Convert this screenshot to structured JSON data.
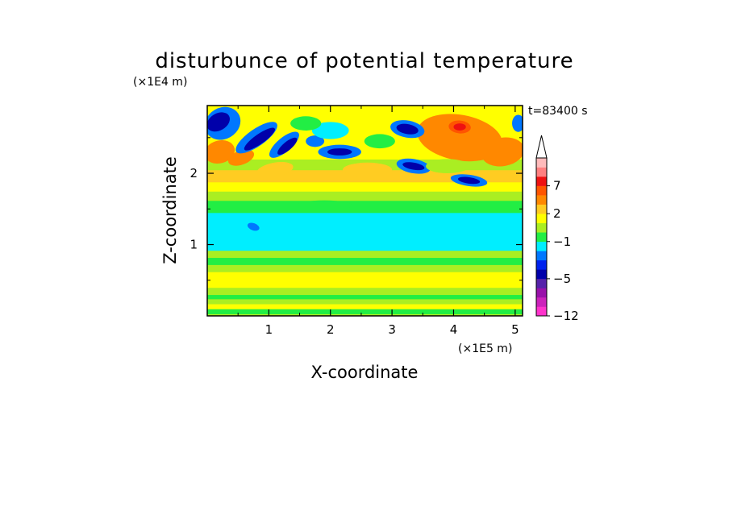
{
  "chart_data": {
    "type": "heatmap",
    "title": "disturbunce of potential temperature",
    "xlabel": "X-coordinate",
    "ylabel": "Z-coordinate",
    "x_unit": "(×1E5 m)",
    "y_unit": "(×1E4 m)",
    "time_label": "t=83400 s",
    "xlim": [
      0,
      5.12
    ],
    "ylim": [
      0,
      2.95
    ],
    "x_ticks": [
      1,
      2,
      3,
      4,
      5
    ],
    "x_tick_labels": [
      "1",
      "2",
      "3",
      "4",
      "5"
    ],
    "y_ticks": [
      1,
      2
    ],
    "y_tick_labels": [
      "1",
      "2"
    ],
    "colorbar": {
      "ticks": [
        -12,
        -5,
        -1,
        2,
        7
      ],
      "tick_labels": [
        "−12",
        "−5",
        "−1",
        "2",
        "7"
      ],
      "arrow_top": true,
      "levels": [
        {
          "from": -12,
          "to": -10,
          "color": "#ff33cc"
        },
        {
          "from": -10,
          "to": -8,
          "color": "#cc22bb"
        },
        {
          "from": -8,
          "to": -7,
          "color": "#9911aa"
        },
        {
          "from": -7,
          "to": -5,
          "color": "#5522aa"
        },
        {
          "from": -5,
          "to": -4,
          "color": "#0000aa"
        },
        {
          "from": -4,
          "to": -3,
          "color": "#0022ee"
        },
        {
          "from": -3,
          "to": -2,
          "color": "#0077ff"
        },
        {
          "from": -2,
          "to": -1,
          "color": "#00eeff"
        },
        {
          "from": -1,
          "to": 0,
          "color": "#22ee44"
        },
        {
          "from": 0,
          "to": 1,
          "color": "#aaee22"
        },
        {
          "from": 1,
          "to": 2,
          "color": "#ffff00"
        },
        {
          "from": 2,
          "to": 3,
          "color": "#ffcc22"
        },
        {
          "from": 3,
          "to": 5,
          "color": "#ff8800"
        },
        {
          "from": 5,
          "to": 7,
          "color": "#ff5500"
        },
        {
          "from": 7,
          "to": 8,
          "color": "#ee1111"
        },
        {
          "from": 8,
          "to": 9,
          "color": "#ff8080"
        },
        {
          "from": 9,
          "to": 10,
          "color": "#ffbbbb"
        }
      ]
    },
    "bands": [
      {
        "z_from": 0.0,
        "z_to": 0.03,
        "value": 0.5
      },
      {
        "z_from": 0.03,
        "z_to": 0.1,
        "value": -0.5
      },
      {
        "z_from": 0.1,
        "z_to": 0.17,
        "value": 1.5
      },
      {
        "z_from": 0.17,
        "z_to": 0.24,
        "value": 0.5
      },
      {
        "z_from": 0.24,
        "z_to": 0.3,
        "value": -0.5
      },
      {
        "z_from": 0.3,
        "z_to": 0.4,
        "value": 0.5
      },
      {
        "z_from": 0.4,
        "z_to": 0.62,
        "value": 1.5
      },
      {
        "z_from": 0.62,
        "z_to": 0.72,
        "value": 0.5
      },
      {
        "z_from": 0.72,
        "z_to": 0.82,
        "value": -0.5
      },
      {
        "z_from": 0.82,
        "z_to": 0.92,
        "value": 0.5
      },
      {
        "z_from": 0.92,
        "z_to": 1.45,
        "value": -1.5
      },
      {
        "z_from": 1.45,
        "z_to": 1.62,
        "value": -0.5
      },
      {
        "z_from": 1.62,
        "z_to": 1.75,
        "value": 0.5
      },
      {
        "z_from": 1.75,
        "z_to": 1.88,
        "value": 1.5
      },
      {
        "z_from": 1.88,
        "z_to": 2.05,
        "value": 2.5
      },
      {
        "z_from": 2.05,
        "z_to": 2.2,
        "value": 0.5
      },
      {
        "z_from": 2.2,
        "z_to": 2.95,
        "value": 1.5
      }
    ],
    "features": [
      {
        "x": 0.2,
        "z": 2.3,
        "rx": 0.25,
        "rz": 0.16,
        "rot": 15,
        "value": 4
      },
      {
        "x": 0.55,
        "z": 2.22,
        "rx": 0.22,
        "rz": 0.1,
        "rot": 20,
        "value": 3
      },
      {
        "x": 1.1,
        "z": 2.05,
        "rx": 0.3,
        "rz": 0.1,
        "rot": 10,
        "value": 2.5
      },
      {
        "x": 4.1,
        "z": 2.5,
        "rx": 0.7,
        "rz": 0.32,
        "rot": -10,
        "value": 4
      },
      {
        "x": 4.8,
        "z": 2.3,
        "rx": 0.35,
        "rz": 0.2,
        "rot": 10,
        "value": 4
      },
      {
        "x": 4.1,
        "z": 2.65,
        "rx": 0.18,
        "rz": 0.09,
        "rot": -5,
        "value": 6
      },
      {
        "x": 4.1,
        "z": 2.65,
        "rx": 0.1,
        "rz": 0.05,
        "rot": 0,
        "value": 7.5
      },
      {
        "x": 2.6,
        "z": 2.05,
        "rx": 0.4,
        "rz": 0.1,
        "rot": 0,
        "value": 2.5
      },
      {
        "x": 3.6,
        "z": 2.0,
        "rx": 0.3,
        "rz": 0.08,
        "rot": 5,
        "value": 2.5
      },
      {
        "x": 0.25,
        "z": 2.7,
        "rx": 0.3,
        "rz": 0.22,
        "rot": 30,
        "value": -3
      },
      {
        "x": 0.18,
        "z": 2.72,
        "rx": 0.2,
        "rz": 0.12,
        "rot": 30,
        "value": -4.5
      },
      {
        "x": 0.8,
        "z": 2.5,
        "rx": 0.4,
        "rz": 0.12,
        "rot": 35,
        "value": -3
      },
      {
        "x": 0.85,
        "z": 2.48,
        "rx": 0.3,
        "rz": 0.07,
        "rot": 35,
        "value": -4.5
      },
      {
        "x": 1.25,
        "z": 2.4,
        "rx": 0.3,
        "rz": 0.1,
        "rot": 40,
        "value": -3
      },
      {
        "x": 1.3,
        "z": 2.38,
        "rx": 0.2,
        "rz": 0.06,
        "rot": 40,
        "value": -4.5
      },
      {
        "x": 2.15,
        "z": 2.3,
        "rx": 0.35,
        "rz": 0.1,
        "rot": 0,
        "value": -3
      },
      {
        "x": 2.15,
        "z": 2.3,
        "rx": 0.2,
        "rz": 0.05,
        "rot": 0,
        "value": -4.5
      },
      {
        "x": 1.75,
        "z": 2.45,
        "rx": 0.15,
        "rz": 0.08,
        "rot": 0,
        "value": -3
      },
      {
        "x": 3.25,
        "z": 2.62,
        "rx": 0.28,
        "rz": 0.12,
        "rot": -10,
        "value": -3
      },
      {
        "x": 3.25,
        "z": 2.62,
        "rx": 0.18,
        "rz": 0.07,
        "rot": -10,
        "value": -4.5
      },
      {
        "x": 3.35,
        "z": 2.1,
        "rx": 0.28,
        "rz": 0.1,
        "rot": -10,
        "value": -3
      },
      {
        "x": 3.35,
        "z": 2.1,
        "rx": 0.18,
        "rz": 0.05,
        "rot": -10,
        "value": -4.5
      },
      {
        "x": 4.25,
        "z": 1.9,
        "rx": 0.3,
        "rz": 0.08,
        "rot": -8,
        "value": -3
      },
      {
        "x": 4.25,
        "z": 1.9,
        "rx": 0.18,
        "rz": 0.045,
        "rot": -8,
        "value": -4.5
      },
      {
        "x": 5.05,
        "z": 2.7,
        "rx": 0.1,
        "rz": 0.12,
        "rot": 0,
        "value": -3
      },
      {
        "x": 0.75,
        "z": 1.25,
        "rx": 0.1,
        "rz": 0.05,
        "rot": -20,
        "value": -3
      },
      {
        "x": 2.0,
        "z": 2.6,
        "rx": 0.3,
        "rz": 0.12,
        "rot": 0,
        "value": -1.5
      },
      {
        "x": 2.8,
        "z": 2.45,
        "rx": 0.25,
        "rz": 0.1,
        "rot": 0,
        "value": -0.5
      },
      {
        "x": 1.6,
        "z": 2.7,
        "rx": 0.25,
        "rz": 0.1,
        "rot": 0,
        "value": -0.5
      },
      {
        "x": 3.9,
        "z": 2.1,
        "rx": 0.35,
        "rz": 0.1,
        "rot": 0,
        "value": 0.5
      },
      {
        "x": 1.9,
        "z": 1.55,
        "rx": 0.45,
        "rz": 0.07,
        "rot": 0,
        "value": -0.5
      },
      {
        "x": 3.0,
        "z": 1.1,
        "rx": 1.2,
        "rz": 0.08,
        "rot": 0,
        "value": -1.5
      }
    ]
  }
}
